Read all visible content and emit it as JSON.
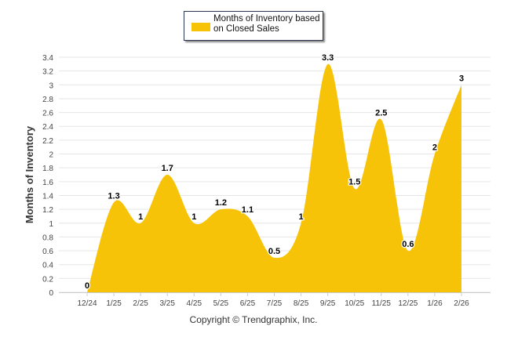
{
  "chart_data": {
    "type": "area",
    "title": "",
    "legend": {
      "label": "Months of Inventory based on Closed Sales",
      "placement": "top-center"
    },
    "categories": [
      "12/24",
      "1/25",
      "2/25",
      "3/25",
      "4/25",
      "5/25",
      "6/25",
      "7/25",
      "8/25",
      "9/25",
      "10/25",
      "11/25",
      "12/25",
      "1/26",
      "2/26"
    ],
    "values": [
      0,
      1.3,
      1,
      1.7,
      1,
      1.2,
      1.1,
      0.5,
      1,
      3.3,
      1.5,
      2.5,
      0.6,
      2,
      3
    ],
    "data_labels": [
      "0",
      "1.3",
      "1",
      "1.7",
      "1",
      "1.2",
      "1.1",
      "0.5",
      "1",
      "3.3",
      "1.5",
      "2.5",
      "0.6",
      "2",
      "3"
    ],
    "ylabel": "Months of Inventory",
    "xlabel": "",
    "ylim": [
      0,
      3.4
    ],
    "yticks": [
      "0",
      "0.2",
      "0.4",
      "0.6",
      "0.8",
      "1",
      "1.2",
      "1.4",
      "1.6",
      "1.8",
      "2",
      "2.2",
      "2.4",
      "2.6",
      "2.8",
      "3",
      "3.2",
      "3.4"
    ],
    "grid": true,
    "color": "#F7C308"
  },
  "footer": "Copyright © Trendgraphix, Inc."
}
